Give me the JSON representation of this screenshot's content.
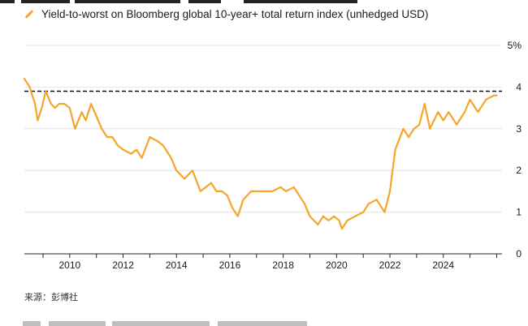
{
  "chart_data": {
    "type": "line",
    "title": "",
    "legend": "Yield-to-worst on Bloomberg global 10-year+ total return index (unhedged USD)",
    "xlabel": "",
    "ylabel": "",
    "x_ticks": [
      "2010",
      "2012",
      "2014",
      "2016",
      "2018",
      "2020",
      "2022",
      "2024"
    ],
    "y_ticks": [
      "5%",
      "4",
      "3",
      "2",
      "1",
      "0"
    ],
    "xlim": [
      2008.3,
      2026.2
    ],
    "ylim": [
      0,
      5
    ],
    "reference_line": {
      "y": 3.9,
      "style": "dashed"
    },
    "series": [
      {
        "name": "Yield-to-worst",
        "color": "#f4a52a",
        "x": [
          2008.3,
          2008.5,
          2008.7,
          2008.8,
          2008.95,
          2009.1,
          2009.3,
          2009.45,
          2009.6,
          2009.8,
          2010.0,
          2010.2,
          2010.45,
          2010.6,
          2010.8,
          2011.0,
          2011.2,
          2011.4,
          2011.6,
          2011.8,
          2012.0,
          2012.3,
          2012.5,
          2012.7,
          2013.0,
          2013.3,
          2013.5,
          2013.8,
          2014.0,
          2014.3,
          2014.6,
          2014.9,
          2015.1,
          2015.3,
          2015.5,
          2015.7,
          2015.9,
          2016.1,
          2016.3,
          2016.5,
          2016.8,
          2017.0,
          2017.3,
          2017.6,
          2017.9,
          2018.1,
          2018.4,
          2018.8,
          2019.0,
          2019.3,
          2019.5,
          2019.7,
          2019.9,
          2020.1,
          2020.2,
          2020.4,
          2020.7,
          2021.0,
          2021.2,
          2021.5,
          2021.8,
          2022.0,
          2022.2,
          2022.5,
          2022.7,
          2022.9,
          2023.1,
          2023.3,
          2023.5,
          2023.8,
          2024.0,
          2024.2,
          2024.5,
          2024.8,
          2025.0,
          2025.3,
          2025.6,
          2025.9,
          2026.0
        ],
        "values": [
          4.2,
          4.0,
          3.6,
          3.2,
          3.5,
          3.9,
          3.6,
          3.5,
          3.6,
          3.6,
          3.5,
          3.0,
          3.4,
          3.2,
          3.6,
          3.3,
          3.0,
          2.8,
          2.8,
          2.6,
          2.5,
          2.4,
          2.5,
          2.3,
          2.8,
          2.7,
          2.6,
          2.3,
          2.0,
          1.8,
          2.0,
          1.5,
          1.6,
          1.7,
          1.5,
          1.5,
          1.4,
          1.1,
          0.9,
          1.3,
          1.5,
          1.5,
          1.5,
          1.5,
          1.6,
          1.5,
          1.6,
          1.2,
          0.9,
          0.7,
          0.9,
          0.8,
          0.9,
          0.8,
          0.6,
          0.8,
          0.9,
          1.0,
          1.2,
          1.3,
          1.0,
          1.5,
          2.5,
          3.0,
          2.8,
          3.0,
          3.1,
          3.6,
          3.0,
          3.4,
          3.2,
          3.4,
          3.1,
          3.4,
          3.7,
          3.4,
          3.7,
          3.8,
          3.8
        ]
      }
    ]
  },
  "source": "来源：彭博社"
}
